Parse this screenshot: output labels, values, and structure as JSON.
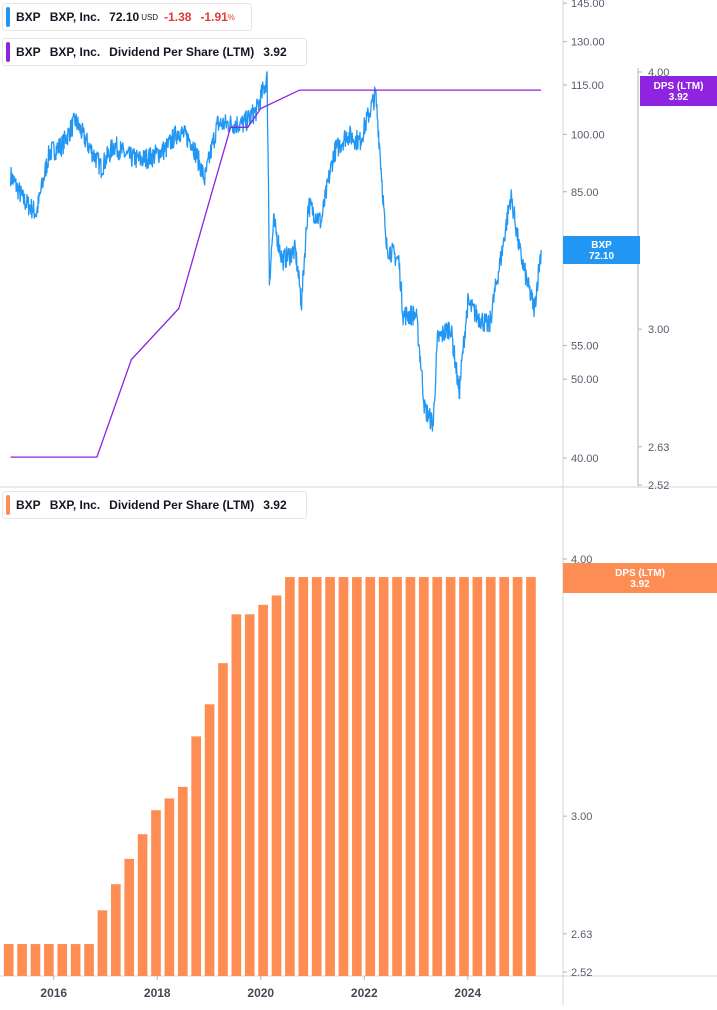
{
  "legend_top": {
    "ticker": "BXP",
    "name": "BXP, Inc.",
    "price": "72.10",
    "currency": "USD",
    "change": "-1.38",
    "change_pct": "-1.91",
    "pct_sign": "%",
    "color": "#2196f3"
  },
  "legend_dps_top": {
    "ticker": "BXP",
    "name": "BXP, Inc.",
    "metric": "Dividend Per Share (LTM)",
    "value": "3.92",
    "color": "#8e24df"
  },
  "legend_dps_bottom": {
    "ticker": "BXP",
    "name": "BXP, Inc.",
    "metric": "Dividend Per Share (LTM)",
    "value": "3.92",
    "color": "#fd8d52"
  },
  "chart_data": [
    {
      "type": "line",
      "title": "BXP, Inc.",
      "scale": "log",
      "price_axis": {
        "ticks": [
          "145.00",
          "130.00",
          "115.00",
          "100.00",
          "85.00",
          "55.00",
          "50.00",
          "40.00"
        ],
        "label_title": "BXP",
        "label_value": "72.10",
        "label_color": "#2196f3"
      },
      "dps_axis": {
        "ticks": [
          "4.00",
          "3.00",
          "2.63",
          "2.52"
        ],
        "label_title": "DPS (LTM)",
        "label_value": "3.92",
        "label_color": "#8e24df"
      },
      "series": [
        {
          "name": "BXP",
          "color": "#2196f3",
          "points": [
            [
              "2015-03",
              89
            ],
            [
              "2015-06",
              83
            ],
            [
              "2015-09",
              80
            ],
            [
              "2015-12",
              95
            ],
            [
              "2016-03",
              97
            ],
            [
              "2016-06",
              104
            ],
            [
              "2016-09",
              97
            ],
            [
              "2016-12",
              91
            ],
            [
              "2017-03",
              97
            ],
            [
              "2017-06",
              94
            ],
            [
              "2017-09",
              93
            ],
            [
              "2017-12",
              94
            ],
            [
              "2018-03",
              96
            ],
            [
              "2018-06",
              101
            ],
            [
              "2018-09",
              98
            ],
            [
              "2018-12",
              88
            ],
            [
              "2019-03",
              103
            ],
            [
              "2019-06",
              103
            ],
            [
              "2019-09",
              103
            ],
            [
              "2019-12",
              107
            ],
            [
              "2020-02-15",
              117
            ],
            [
              "2020-03",
              66
            ],
            [
              "2020-04",
              78
            ],
            [
              "2020-06",
              70
            ],
            [
              "2020-09",
              72
            ],
            [
              "2020-10-15",
              62
            ],
            [
              "2020-12",
              82
            ],
            [
              "2021-03",
              78
            ],
            [
              "2021-06",
              95
            ],
            [
              "2021-09",
              100
            ],
            [
              "2021-12",
              98
            ],
            [
              "2022-03-20",
              112
            ],
            [
              "2022-06",
              73
            ],
            [
              "2022-09",
              70
            ],
            [
              "2022-10",
              60
            ],
            [
              "2023-01",
              60
            ],
            [
              "2023-03",
              46
            ],
            [
              "2023-05",
              44
            ],
            [
              "2023-06",
              56
            ],
            [
              "2023-09",
              58
            ],
            [
              "2023-11",
              48
            ],
            [
              "2024-01",
              62
            ],
            [
              "2024-03",
              60
            ],
            [
              "2024-06",
              58
            ],
            [
              "2024-09",
              72
            ],
            [
              "2024-11",
              84
            ],
            [
              "2025-01",
              72
            ],
            [
              "2025-03",
              65
            ],
            [
              "2025-04-15",
              61
            ],
            [
              "2025-06",
              72.1
            ]
          ]
        },
        {
          "name": "DPS (LTM)",
          "color": "#8e24df",
          "points": [
            [
              "2015-03",
              2.6
            ],
            [
              "2016-11",
              2.6
            ],
            [
              "2017-07",
              2.9
            ],
            [
              "2018-06",
              3.07
            ],
            [
              "2018-12",
              3.4
            ],
            [
              "2019-06",
              3.76
            ],
            [
              "2019-10",
              3.76
            ],
            [
              "2020-01",
              3.84
            ],
            [
              "2020-10",
              3.92
            ],
            [
              "2025-06",
              3.92
            ]
          ]
        }
      ]
    },
    {
      "type": "bar",
      "title": "BXP, Inc. Dividend Per Share (LTM)",
      "scale": "log",
      "x_ticks": [
        "2016",
        "2018",
        "2020",
        "2022",
        "2024"
      ],
      "y_ticks": [
        "4.00",
        "3.00",
        "2.63",
        "2.52"
      ],
      "label_title": "DPS (LTM)",
      "label_value": "3.92",
      "label_color": "#fd8d52",
      "series": [
        {
          "name": "Dividend Per Share (LTM)",
          "color": "#fd8d52",
          "categories": [
            "2015-Q2",
            "2015-Q3",
            "2015-Q4",
            "2016-Q1",
            "2016-Q2",
            "2016-Q3",
            "2016-Q4",
            "2017-Q1",
            "2017-Q2",
            "2017-Q3",
            "2017-Q4",
            "2018-Q1",
            "2018-Q2",
            "2018-Q3",
            "2018-Q4",
            "2019-Q1",
            "2019-Q2",
            "2019-Q3",
            "2019-Q4",
            "2020-Q1",
            "2020-Q2",
            "2020-Q3",
            "2020-Q4",
            "2021-Q1",
            "2021-Q2",
            "2021-Q3",
            "2021-Q4",
            "2022-Q1",
            "2022-Q2",
            "2022-Q3",
            "2022-Q4",
            "2023-Q1",
            "2023-Q2",
            "2023-Q3",
            "2023-Q4",
            "2024-Q1",
            "2024-Q2",
            "2024-Q3",
            "2024-Q4",
            "2025-Q1"
          ],
          "values": [
            2.6,
            2.6,
            2.6,
            2.6,
            2.6,
            2.6,
            2.6,
            2.7,
            2.78,
            2.86,
            2.94,
            3.02,
            3.06,
            3.1,
            3.28,
            3.4,
            3.56,
            3.76,
            3.76,
            3.8,
            3.84,
            3.92,
            3.92,
            3.92,
            3.92,
            3.92,
            3.92,
            3.92,
            3.92,
            3.92,
            3.92,
            3.92,
            3.92,
            3.92,
            3.92,
            3.92,
            3.92,
            3.92,
            3.92,
            3.92
          ]
        }
      ]
    }
  ]
}
